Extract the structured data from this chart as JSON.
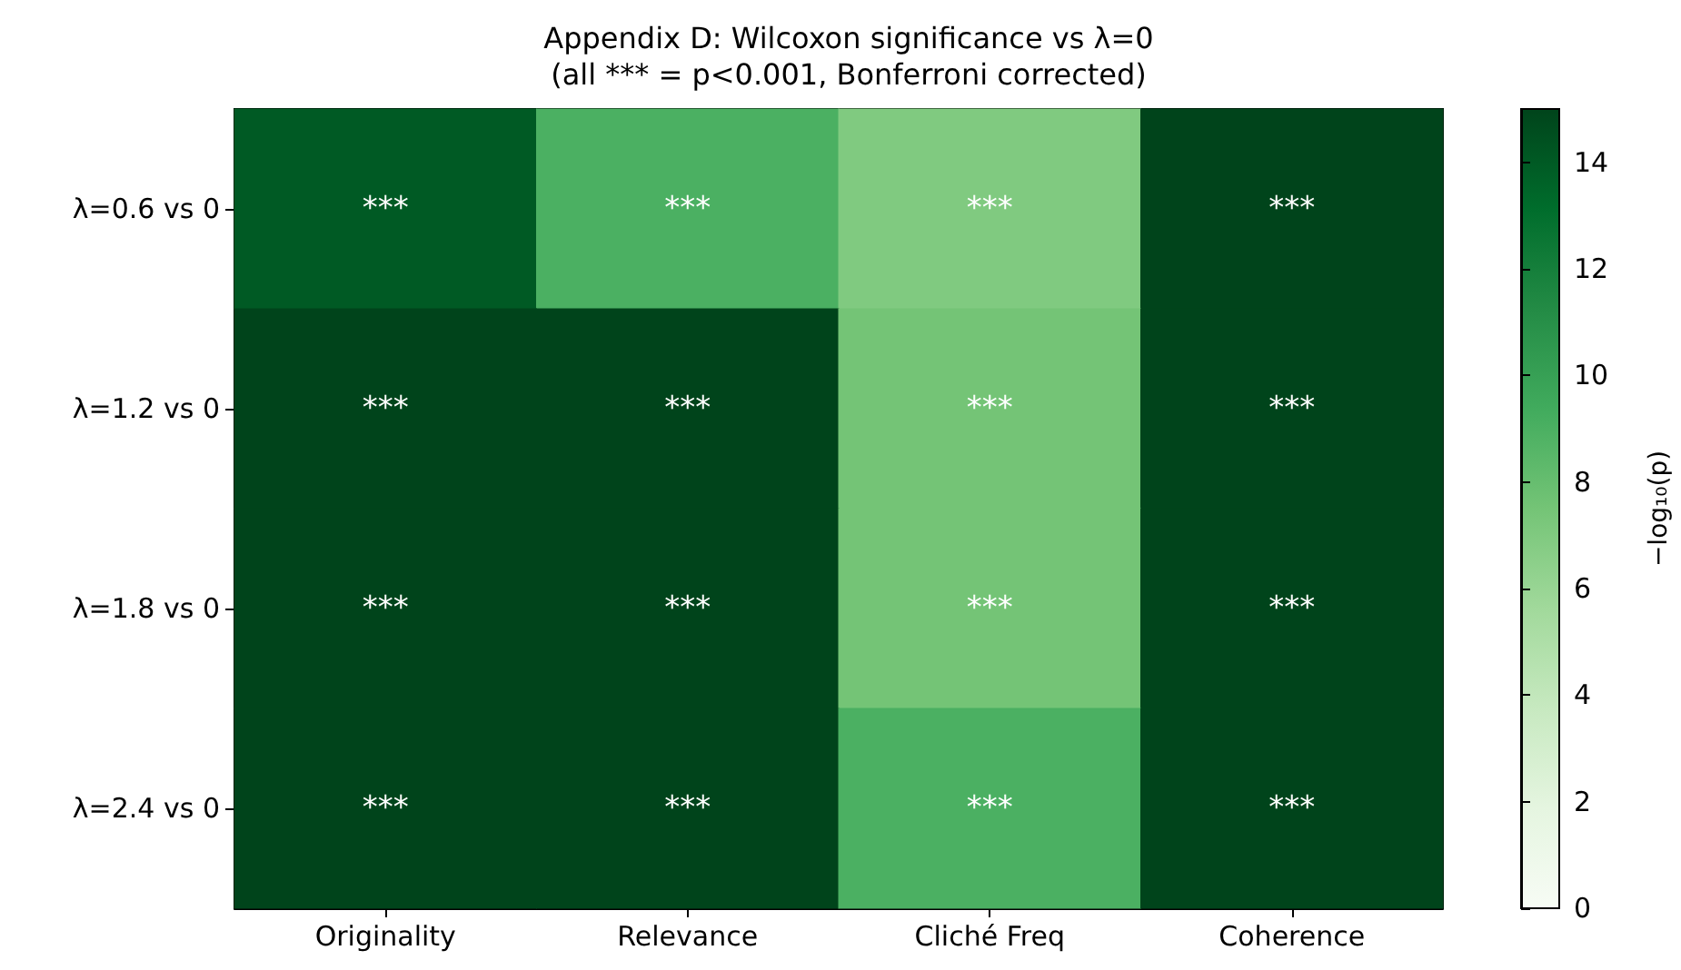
{
  "chart_data": {
    "type": "heatmap",
    "title": "Appendix D: Wilcoxon significance vs λ=0",
    "subtitle": "(all *** = p<0.001, Bonferroni corrected)",
    "categories": [
      "Originality",
      "Relevance",
      "Cliché Freq",
      "Coherence"
    ],
    "y_categories": [
      "λ=0.6 vs 0",
      "λ=1.2 vs 0",
      "λ=1.8 vs 0",
      "λ=2.4 vs 0"
    ],
    "cells": [
      [
        14,
        9,
        7,
        15
      ],
      [
        15,
        15,
        7.5,
        15
      ],
      [
        15,
        15,
        7.5,
        15
      ],
      [
        15,
        15,
        9,
        15
      ]
    ],
    "cell_labels": [
      [
        "***",
        "***",
        "***",
        "***"
      ],
      [
        "***",
        "***",
        "***",
        "***"
      ],
      [
        "***",
        "***",
        "***",
        "***"
      ],
      [
        "***",
        "***",
        "***",
        "***"
      ]
    ],
    "clabel": "−log₁₀(p)",
    "clim": [
      0,
      15
    ],
    "cticks": [
      0,
      2,
      4,
      6,
      8,
      10,
      12,
      14
    ],
    "grid": false
  }
}
